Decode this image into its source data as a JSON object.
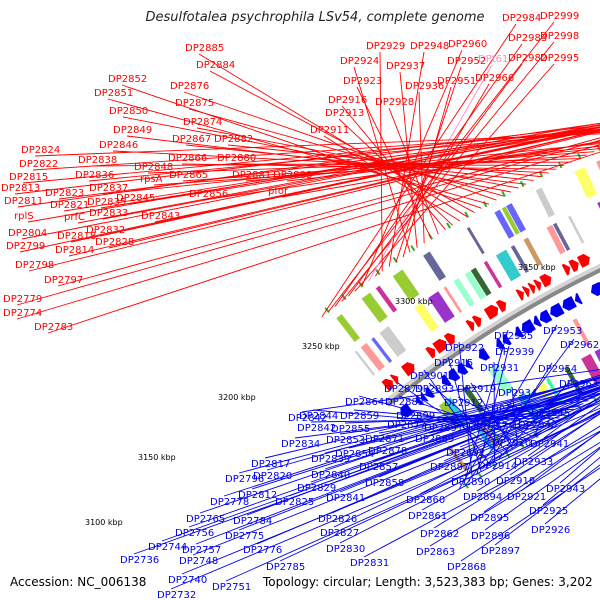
{
  "title": "Desulfotalea psychrophila LSv54, complete genome",
  "footer": {
    "accession": "Accession: NC_006138",
    "stats": "Topology: circular; Length: 3,523,383 bp; Genes: 3,202"
  },
  "colors": {
    "forward_strand": "#ff0000",
    "reverse_strand": "#0000ee",
    "rna_highlight": "#ff88cc",
    "backbone": "#888888"
  },
  "kbp_ticks": [
    "3100 kbp",
    "3150 kbp",
    "3200 kbp",
    "3250 kbp",
    "3300 kbp",
    "3350 kbp"
  ],
  "forward_labels": [
    "DP2984",
    "DP2999",
    "DP2983",
    "DP2998",
    "DP2982",
    "DP2995",
    "DP2960",
    "DPt61",
    "DP2966",
    "DP2929",
    "DP2948",
    "DP2952",
    "DP2951",
    "DP2924",
    "DP2937",
    "DP2936",
    "DP2923",
    "DP2928",
    "DP2916",
    "DP2913",
    "DP2911",
    "DP2885",
    "DP2884",
    "DP2852",
    "DP2851",
    "DP2876",
    "DP2875",
    "DP2850",
    "DP2874",
    "DP2849",
    "DP2867",
    "DP2882",
    "DP2846",
    "DP2866",
    "DP2880",
    "DP2838",
    "DP2848",
    "rpsA",
    "DP2865",
    "DP2881",
    "DP2888",
    "DP2837",
    "DP2856",
    "pfor",
    "DP2824",
    "DP2822",
    "DP2836",
    "DP2815",
    "DP2823",
    "DP2845",
    "DP2813",
    "DP2821",
    "DP2835",
    "DP2811",
    "DP2833",
    "DP2843",
    "rplS",
    "prfC",
    "DP2804",
    "DP2818",
    "DP2832",
    "DP2799",
    "DP2814",
    "DP2828",
    "DP2798",
    "DP2797",
    "DP2779",
    "DP2774",
    "DP2783"
  ],
  "reverse_labels": [
    "DP2953",
    "DP2935",
    "DP2962",
    "DP2922",
    "DP2939",
    "DP2915",
    "DP2954",
    "DP2901",
    "DP2931",
    "DP2963",
    "DP2879",
    "DP2893",
    "DP2919",
    "DP2934",
    "DP2864",
    "DP2883",
    "DP2912",
    "DP2945",
    "DP2844",
    "DP2859",
    "DP2899",
    "DP2927",
    "DP2842",
    "DP2855",
    "DP2877",
    "DP2891",
    "DP2917",
    "DP2940",
    "DP2834",
    "DP2853",
    "DP2871",
    "DP2889",
    "DP2920",
    "DP2941",
    "DP2854",
    "DP2878",
    "DP2892",
    "DP2839",
    "DP2857",
    "DP2887",
    "DP2914",
    "DP2933",
    "DP2817",
    "DP2840",
    "DP2842b",
    "DP2796",
    "DP2820",
    "DP2829",
    "DP2858",
    "DP2890",
    "DP2918",
    "DP2812",
    "DP2825",
    "DP2841",
    "DP2860",
    "DP2894",
    "DP2921",
    "DP2943",
    "DP2778",
    "DP2826",
    "DP2861",
    "DP2895",
    "DP2925",
    "DP2784",
    "DP2827",
    "DP2862",
    "DP2896",
    "DP2765",
    "DP2775",
    "DP2830",
    "DP2897",
    "DP2926",
    "DP2756",
    "DP2757",
    "DP2776",
    "DP2863",
    "DP2744",
    "DP2748",
    "DP2785",
    "DP2831",
    "DP2868",
    "DP2736",
    "DP2740",
    "DP2751",
    "DP2732"
  ],
  "label_text": {
    "DP2842b": "DP2842"
  }
}
